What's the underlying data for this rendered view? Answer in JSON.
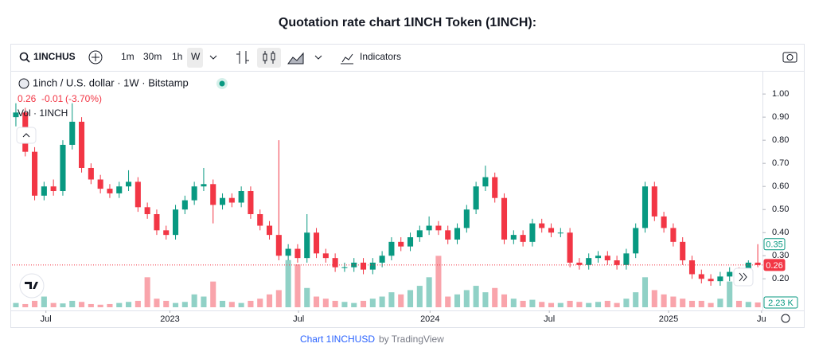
{
  "page_title": "Quotation rate chart 1INCH Token (1INCH):",
  "toolbar": {
    "symbol": "1INCHUS",
    "intervals": [
      "1m",
      "30m",
      "1h",
      "W"
    ],
    "indicators": "Indicators"
  },
  "chart_data": {
    "type": "candlestick",
    "legend": {
      "symbol": "1inch / U.S. dollar · 1W · Bitstamp",
      "last": "0.26",
      "change": "-0.01",
      "change_pct": "(-3.70%)",
      "volume": "Vol · 1INCH"
    },
    "up_color": "#089981",
    "down_color": "#f23645",
    "candles": [
      [
        0.9,
        0.96,
        0.86,
        0.92
      ],
      [
        0.92,
        0.94,
        0.73,
        0.75
      ],
      [
        0.75,
        0.77,
        0.54,
        0.56
      ],
      [
        0.56,
        0.62,
        0.54,
        0.6
      ],
      [
        0.6,
        0.63,
        0.56,
        0.58
      ],
      [
        0.58,
        0.8,
        0.56,
        0.78
      ],
      [
        0.78,
        0.96,
        0.76,
        0.88
      ],
      [
        0.88,
        0.9,
        0.66,
        0.68
      ],
      [
        0.68,
        0.7,
        0.61,
        0.63
      ],
      [
        0.63,
        0.65,
        0.57,
        0.59
      ],
      [
        0.59,
        0.61,
        0.55,
        0.57
      ],
      [
        0.57,
        0.62,
        0.55,
        0.6
      ],
      [
        0.6,
        0.67,
        0.58,
        0.62
      ],
      [
        0.62,
        0.64,
        0.49,
        0.51
      ],
      [
        0.51,
        0.53,
        0.46,
        0.48
      ],
      [
        0.48,
        0.5,
        0.39,
        0.41
      ],
      [
        0.41,
        0.43,
        0.37,
        0.39
      ],
      [
        0.39,
        0.52,
        0.37,
        0.5
      ],
      [
        0.5,
        0.56,
        0.48,
        0.54
      ],
      [
        0.54,
        0.62,
        0.52,
        0.6
      ],
      [
        0.6,
        0.68,
        0.58,
        0.61
      ],
      [
        0.61,
        0.63,
        0.44,
        0.52
      ],
      [
        0.52,
        0.57,
        0.5,
        0.55
      ],
      [
        0.55,
        0.57,
        0.51,
        0.53
      ],
      [
        0.53,
        0.6,
        0.51,
        0.58
      ],
      [
        0.58,
        0.6,
        0.46,
        0.48
      ],
      [
        0.48,
        0.5,
        0.41,
        0.43
      ],
      [
        0.43,
        0.45,
        0.37,
        0.39
      ],
      [
        0.39,
        0.8,
        0.28,
        0.3
      ],
      [
        0.3,
        0.35,
        0.28,
        0.33
      ],
      [
        0.33,
        0.35,
        0.27,
        0.29
      ],
      [
        0.29,
        0.48,
        0.27,
        0.4
      ],
      [
        0.4,
        0.42,
        0.29,
        0.31
      ],
      [
        0.31,
        0.33,
        0.27,
        0.29
      ],
      [
        0.29,
        0.31,
        0.23,
        0.25
      ],
      [
        0.25,
        0.27,
        0.23,
        0.25
      ],
      [
        0.25,
        0.29,
        0.23,
        0.27
      ],
      [
        0.27,
        0.29,
        0.22,
        0.24
      ],
      [
        0.24,
        0.29,
        0.22,
        0.27
      ],
      [
        0.27,
        0.32,
        0.25,
        0.3
      ],
      [
        0.3,
        0.38,
        0.28,
        0.36
      ],
      [
        0.36,
        0.38,
        0.32,
        0.34
      ],
      [
        0.34,
        0.4,
        0.32,
        0.38
      ],
      [
        0.38,
        0.43,
        0.36,
        0.41
      ],
      [
        0.41,
        0.47,
        0.39,
        0.43
      ],
      [
        0.43,
        0.45,
        0.39,
        0.41
      ],
      [
        0.41,
        0.43,
        0.35,
        0.37
      ],
      [
        0.37,
        0.44,
        0.35,
        0.42
      ],
      [
        0.42,
        0.52,
        0.4,
        0.5
      ],
      [
        0.5,
        0.62,
        0.48,
        0.6
      ],
      [
        0.6,
        0.69,
        0.58,
        0.64
      ],
      [
        0.64,
        0.66,
        0.53,
        0.55
      ],
      [
        0.55,
        0.57,
        0.35,
        0.37
      ],
      [
        0.37,
        0.41,
        0.35,
        0.39
      ],
      [
        0.39,
        0.41,
        0.34,
        0.36
      ],
      [
        0.36,
        0.46,
        0.34,
        0.44
      ],
      [
        0.44,
        0.46,
        0.4,
        0.42
      ],
      [
        0.42,
        0.44,
        0.38,
        0.4
      ],
      [
        0.4,
        0.42,
        0.38,
        0.4
      ],
      [
        0.4,
        0.42,
        0.25,
        0.27
      ],
      [
        0.27,
        0.29,
        0.24,
        0.26
      ],
      [
        0.26,
        0.31,
        0.24,
        0.29
      ],
      [
        0.29,
        0.32,
        0.27,
        0.3
      ],
      [
        0.3,
        0.32,
        0.26,
        0.28
      ],
      [
        0.28,
        0.3,
        0.24,
        0.26
      ],
      [
        0.26,
        0.33,
        0.24,
        0.31
      ],
      [
        0.31,
        0.44,
        0.29,
        0.42
      ],
      [
        0.42,
        0.62,
        0.4,
        0.6
      ],
      [
        0.6,
        0.62,
        0.45,
        0.47
      ],
      [
        0.47,
        0.49,
        0.4,
        0.42
      ],
      [
        0.42,
        0.44,
        0.34,
        0.36
      ],
      [
        0.36,
        0.38,
        0.26,
        0.28
      ],
      [
        0.28,
        0.3,
        0.2,
        0.22
      ],
      [
        0.22,
        0.24,
        0.18,
        0.2
      ],
      [
        0.2,
        0.22,
        0.17,
        0.19
      ],
      [
        0.19,
        0.23,
        0.17,
        0.21
      ],
      [
        0.21,
        0.25,
        0.19,
        0.23
      ],
      [
        0.23,
        0.25,
        0.18,
        0.2
      ],
      [
        0.2,
        0.28,
        0.18,
        0.27
      ],
      [
        0.27,
        0.35,
        0.25,
        0.26
      ]
    ],
    "volumes": [
      2,
      1.5,
      3,
      5,
      2,
      1.8,
      3,
      2.5,
      1.5,
      1.2,
      1.5,
      2,
      2.5,
      3,
      14,
      4,
      3,
      2,
      2.5,
      6,
      5,
      12,
      3,
      2.5,
      2,
      3,
      4,
      6,
      8,
      22,
      20,
      9,
      5,
      4,
      3,
      2.5,
      2,
      3,
      4,
      5,
      7,
      6,
      8,
      10,
      14,
      24,
      5,
      6,
      8,
      10,
      7,
      9,
      6,
      4,
      3,
      3.5,
      2.5,
      2,
      2,
      3,
      2.5,
      2,
      2.5,
      3,
      2,
      4,
      7,
      14,
      8,
      6,
      5,
      4,
      3,
      3,
      2,
      4,
      12,
      3,
      2.5,
      2.23
    ],
    "vol_lim": [
      0,
      26
    ],
    "xlim": [
      -0.42,
      79.5
    ],
    "xticks": [
      {
        "value": 3.2,
        "label": "Jul"
      },
      {
        "value": 16.4,
        "label": "2023"
      },
      {
        "value": 30.1,
        "label": "Jul"
      },
      {
        "value": 44.1,
        "label": "2024"
      },
      {
        "value": 56.8,
        "label": "Jul"
      },
      {
        "value": 69.5,
        "label": "2025"
      },
      {
        "value": 79.4,
        "label": "Ju"
      }
    ],
    "ylim": [
      0.07,
      1.09
    ],
    "yticks": [
      {
        "value": 0.2,
        "label": "0.20"
      },
      {
        "value": 0.3,
        "label": "0.30"
      },
      {
        "value": 0.4,
        "label": "0.40"
      },
      {
        "value": 0.5,
        "label": "0.50"
      },
      {
        "value": 0.6,
        "label": "0.60"
      },
      {
        "value": 0.7,
        "label": "0.70"
      },
      {
        "value": 0.8,
        "label": "0.80"
      },
      {
        "value": 0.9,
        "label": "0.90"
      },
      {
        "value": 1.0,
        "label": "1.00"
      }
    ],
    "price_tags": [
      {
        "value": 0.35,
        "label": "0.35"
      },
      {
        "value": 0.26,
        "label": "0.26"
      }
    ],
    "volume_tag": {
      "value": 2.23,
      "label": "2.23 K"
    }
  },
  "footer": {
    "link": "Chart 1INCHUSD",
    "by": "by TradingView"
  }
}
